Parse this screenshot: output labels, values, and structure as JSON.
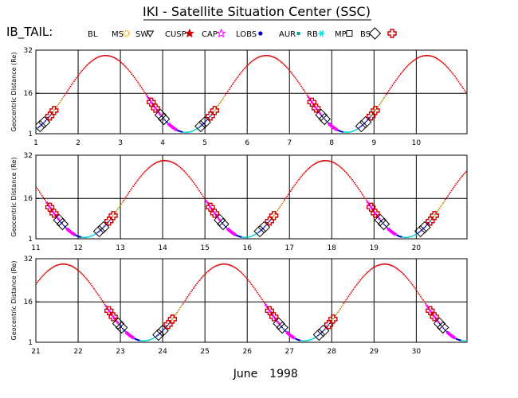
{
  "header": {
    "title": "IKI - Satellite Situation Center (SSC)",
    "dataset": "IB_TAIL:"
  },
  "legend": [
    {
      "label": "BL",
      "color": "#000000",
      "symbol": "none"
    },
    {
      "label": "MS",
      "color": "#ffb000",
      "symbol": "gear"
    },
    {
      "label": "SW",
      "color": "#000000",
      "symbol": "triangle-down"
    },
    {
      "label": "CUSP",
      "color": "#cc0000",
      "symbol": "star-filled"
    },
    {
      "label": "CAP",
      "color": "#ff00ff",
      "symbol": "star-open"
    },
    {
      "label": "LOBS",
      "color": "#0000cc",
      "symbol": "dot"
    },
    {
      "label": "AUR",
      "color": "#00a0a0",
      "symbol": "square-small"
    },
    {
      "label": "RB",
      "color": "#00e0e0",
      "symbol": "asterisk"
    },
    {
      "label": "MP",
      "color": "#000000",
      "symbol": "square-open"
    },
    {
      "label": "BS",
      "color": "#000000",
      "symbol": "diamond-open"
    },
    {
      "label": "",
      "color": "#cc0000",
      "symbol": "cross-open"
    }
  ],
  "colors": {
    "solar_wind": "#dd0000",
    "magnetopause": "#000000",
    "bow_shock": "#cc0000",
    "lobes": "#0000cc",
    "cap": "#ff00ff",
    "radiation_belt": "#00d0d0",
    "grid": "#000000"
  },
  "footer": {
    "month": "June",
    "year": "1998"
  },
  "chart_data": [
    {
      "type": "scatter",
      "title": "",
      "xlabel": "",
      "ylabel": "Geocentric Distance (Re)",
      "xlim": [
        1,
        11.2
      ],
      "ylim": [
        1,
        32
      ],
      "ytick_labels": [
        "1",
        "16",
        "32"
      ],
      "xtick_labels": [
        "1",
        "2",
        "3",
        "4",
        "5",
        "6",
        "7",
        "8",
        "9",
        "10"
      ],
      "orbit_start_day": 1.0,
      "orbit_period_days": 3.8,
      "perigee_days": [
        0.75,
        4.55,
        8.35
      ],
      "apogee_re": 30,
      "perigee_re": 1.5
    },
    {
      "type": "scatter",
      "title": "",
      "xlabel": "",
      "ylabel": "Geocentric Distance (Re)",
      "xlim": [
        11,
        21.2
      ],
      "ylim": [
        1,
        32
      ],
      "ytick_labels": [
        "1",
        "16",
        "32"
      ],
      "xtick_labels": [
        "11",
        "12",
        "13",
        "14",
        "15",
        "16",
        "17",
        "18",
        "19",
        "20"
      ],
      "orbit_period_days": 3.8,
      "perigee_days": [
        12.15,
        15.95,
        19.75
      ],
      "apogee_re": 30,
      "perigee_re": 1.5
    },
    {
      "type": "scatter",
      "title": "",
      "xlabel": "",
      "ylabel": "Geocentric Distance (Re)",
      "xlim": [
        21,
        31.2
      ],
      "ylim": [
        1,
        32
      ],
      "ytick_labels": [
        "1",
        "16",
        "32"
      ],
      "xtick_labels": [
        "21",
        "22",
        "23",
        "24",
        "25",
        "26",
        "27",
        "28",
        "29",
        "30"
      ],
      "orbit_period_days": 3.8,
      "perigee_days": [
        23.55,
        27.35,
        31.15
      ],
      "apogee_re": 30,
      "perigee_re": 1.5
    }
  ]
}
